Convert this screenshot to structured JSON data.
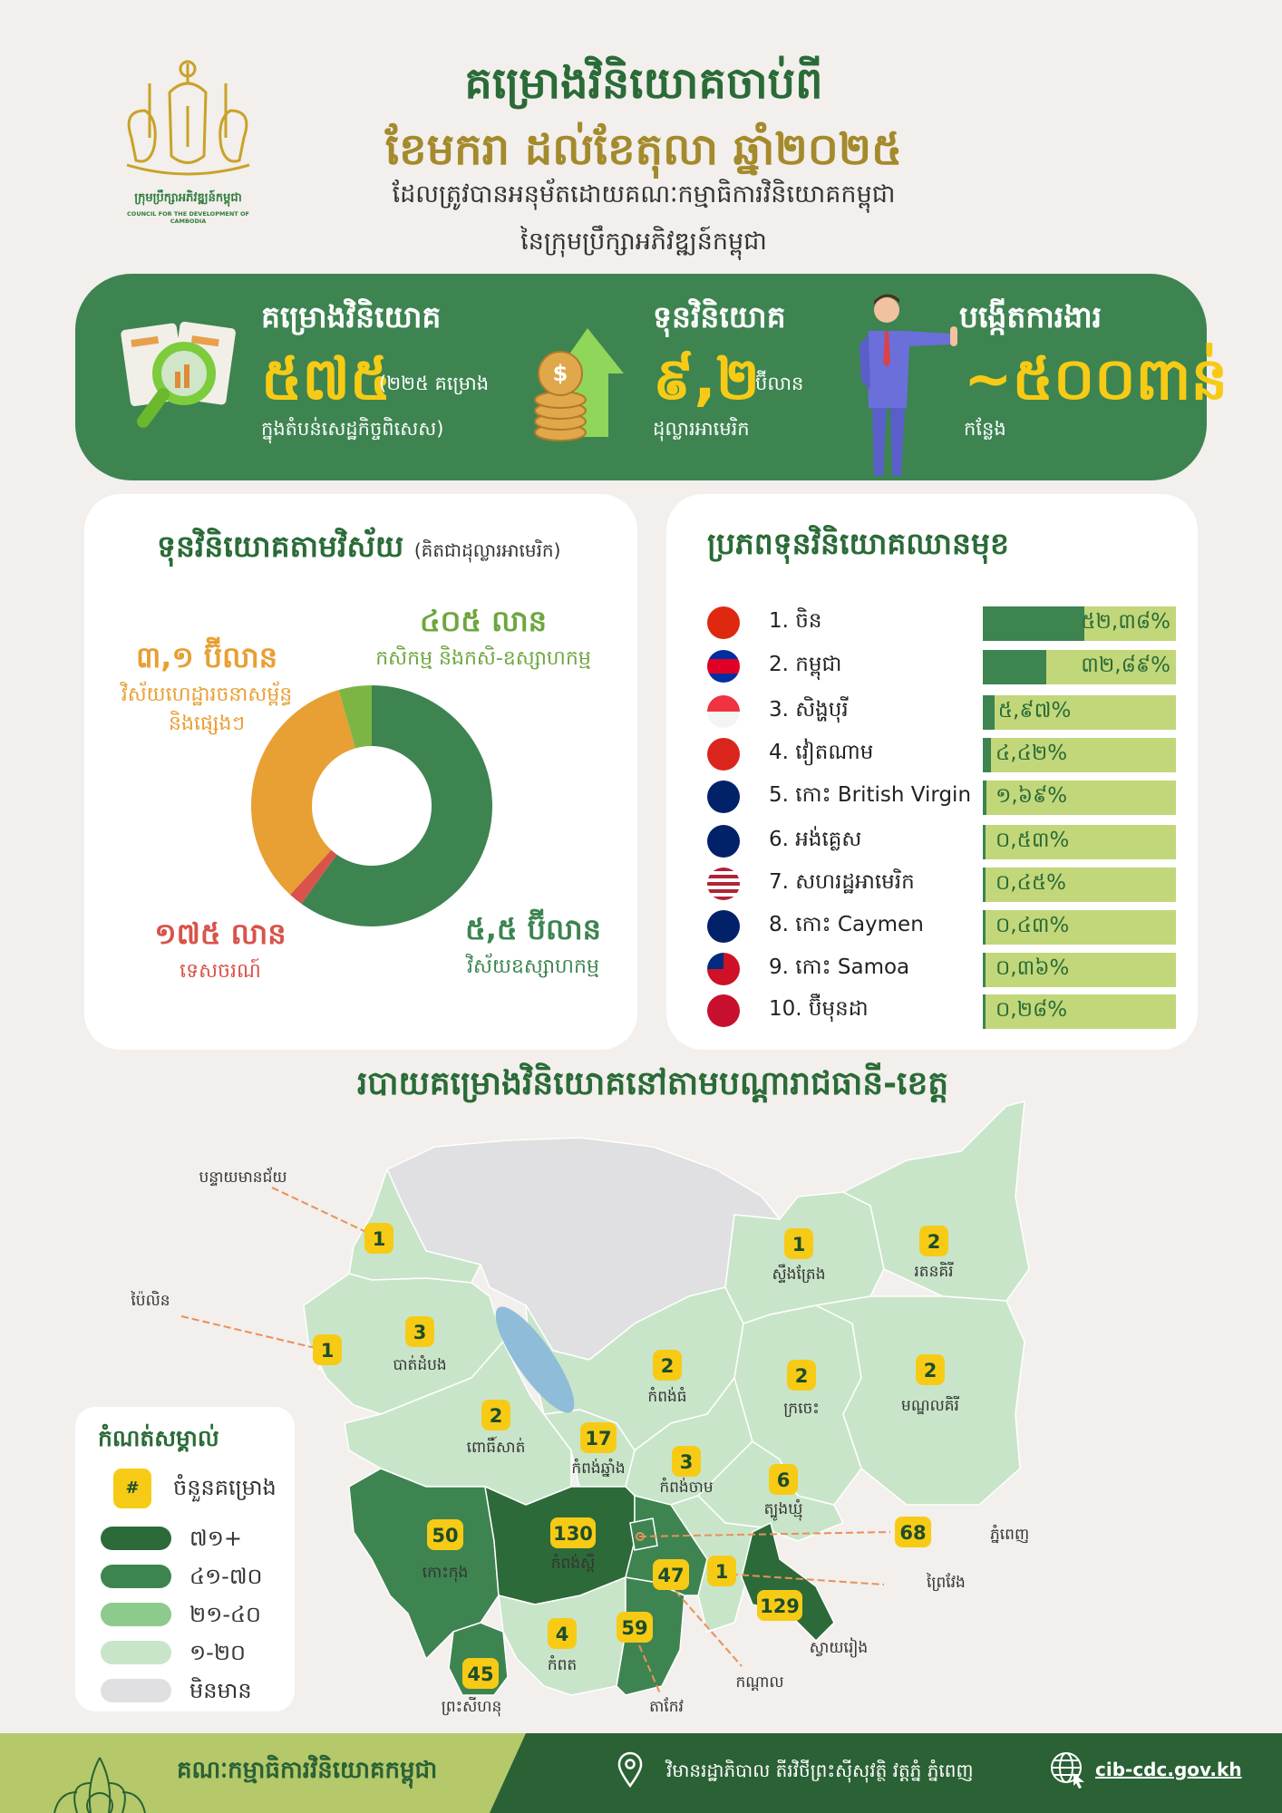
{
  "logo": {
    "kh": "ក្រុមប្រឹក្សាអភិវឌ្ឍន៍កម្ពុជា",
    "en": "COUNCIL FOR THE DEVELOPMENT OF CAMBODIA"
  },
  "header": {
    "title_line1": "គម្រោងវិនិយោគចាប់ពី",
    "title_line2": "ខែមករា ដល់ខែតុលា ឆ្នាំ២០២៥",
    "subtitle_line1": "ដែលត្រូវបានអនុម័តដោយគណៈកម្មាធិការវិនិយោគកម្ពុជា",
    "subtitle_line2": "នៃក្រុមប្រឹក្សាអភិវឌ្ឍន៍កម្ពុជា"
  },
  "stats": [
    {
      "icon": "document-magnifier-icon",
      "label": "គម្រោងវិនិយោគ",
      "value": "៥៧៥",
      "unit": "(២២៥ គម្រោង",
      "note": "ក្នុងតំបន់សេដ្ឋកិច្ចពិសេស)"
    },
    {
      "icon": "coins-arrow-up-icon",
      "label": "ទុនវិនិយោគ",
      "value": "៩,២",
      "unit": "ប៊ីលាន",
      "note": "ដុល្លារអាមេរិក"
    },
    {
      "icon": "businessman-icon",
      "label": "បង្កើតការងារ",
      "value": "~៥០០ពាន់",
      "unit": "",
      "note": "កន្លែង"
    }
  ],
  "colors": {
    "primary": "#3d8451",
    "dark": "#2a6b37",
    "accent": "#f7cb15",
    "gold": "#a48a2c"
  },
  "sector_chart": {
    "title": "ទុនវិនិយោគតាមវិស័យ",
    "note": "(គិតជាដុល្លារអាមេរិក)",
    "chart_data": {
      "type": "pie",
      "donut": true,
      "unit": "USD",
      "slices": [
        {
          "name": "វិស័យឧស្សាហកម្ម",
          "label": "៥,៥ ប៊ីលាន",
          "value": 5500000000,
          "color": "#3d8451",
          "icon": "factory-icon"
        },
        {
          "name": "ទេសចរណ៍",
          "label": "១៧៥ លាន",
          "value": 175000000,
          "color": "#d9534a",
          "icon": "globe-luggage-icon"
        },
        {
          "name": "វិស័យហេដ្ឋារចនាសម្ព័ន្ធ និងផ្សេងៗ",
          "label": "៣,១ ប៊ីលាន",
          "value": 3100000000,
          "color": "#e89f33",
          "icon": "city-gear-icon"
        },
        {
          "name": "កសិកម្ម និងកសិ-ឧស្សាហកម្ម",
          "label": "៤០៥ លាន",
          "value": 405000000,
          "color": "#7db544",
          "icon": "plant-icon"
        }
      ]
    }
  },
  "top_investors": {
    "title": "ប្រភពទុនវិនិយោគឈានមុខ",
    "chart_data": {
      "type": "bar",
      "unit": "%",
      "rows": [
        {
          "rank": "1.",
          "name": "ចិន",
          "value": 52.38,
          "label": "៥២,៣៨%",
          "flag": "china-flag-icon"
        },
        {
          "rank": "2.",
          "name": "កម្ពុជា",
          "value": 32.89,
          "label": "៣២,៨៩%",
          "flag": "cambodia-flag-icon"
        },
        {
          "rank": "3.",
          "name": "សិង្ហបុរី",
          "value": 5.97,
          "label": "៥,៩៧%",
          "flag": "singapore-flag-icon"
        },
        {
          "rank": "4.",
          "name": "វៀតណាម",
          "value": 4.42,
          "label": "៤,៤២%",
          "flag": "vietnam-flag-icon"
        },
        {
          "rank": "5.",
          "name": "កោះ British Virgin",
          "value": 1.69,
          "label": "១,៦៩%",
          "flag": "bvi-flag-icon"
        },
        {
          "rank": "6.",
          "name": "អង់គ្លេស",
          "value": 0.53,
          "label": "០,៥៣%",
          "flag": "uk-flag-icon"
        },
        {
          "rank": "7.",
          "name": "សហរដ្ឋអាមេរិក",
          "value": 0.45,
          "label": "០,៤៥%",
          "flag": "usa-flag-icon"
        },
        {
          "rank": "8.",
          "name": "កោះ Caymen",
          "value": 0.43,
          "label": "០,៤៣%",
          "flag": "cayman-flag-icon"
        },
        {
          "rank": "9.",
          "name": "កោះ Samoa",
          "value": 0.36,
          "label": "០,៣៦%",
          "flag": "samoa-flag-icon"
        },
        {
          "rank": "10.",
          "name": "ប៊ឺមុនដា",
          "value": 0.28,
          "label": "០,២៨%",
          "flag": "bermuda-flag-icon"
        }
      ]
    }
  },
  "map": {
    "title": "របាយគម្រោងវិនិយោគនៅតាមបណ្ដារាជធានី-ខេត្ត",
    "legend": {
      "title": "កំណត់សម្គាល់",
      "badge_symbol": "#",
      "badge_label": "ចំនួនគម្រោង",
      "bands": [
        {
          "label": "៧១+",
          "color": "#2d6a3a"
        },
        {
          "label": "៤១-៧០",
          "color": "#3d8451"
        },
        {
          "label": "២១-៤០",
          "color": "#8ccb8c"
        },
        {
          "label": "១-២០",
          "color": "#c9e5c9"
        },
        {
          "label": "មិនមាន",
          "color": "#e0dfe1"
        }
      ]
    },
    "no_data_color": "#e0dfe1",
    "lake_color": "#8fbcd9",
    "provinces": [
      {
        "id": "bmc",
        "name": "បន្ទាយមានជ័យ",
        "count": 1
      },
      {
        "id": "pailin",
        "name": "ប៉ៃលិន",
        "count": 1
      },
      {
        "id": "btb",
        "name": "បាត់ដំបង",
        "count": 3
      },
      {
        "id": "pursat",
        "name": "ពោធិ៍សាត់",
        "count": 2
      },
      {
        "id": "kchhnang",
        "name": "កំពង់ឆ្នាំង",
        "count": 17
      },
      {
        "id": "kthom",
        "name": "កំពង់ធំ",
        "count": 2
      },
      {
        "id": "kcham",
        "name": "កំពង់ចាម",
        "count": 3
      },
      {
        "id": "tkhmum",
        "name": "ត្បូងឃ្មុំ",
        "count": 6
      },
      {
        "id": "stung",
        "name": "ស្ទឹងត្រែង",
        "count": 1
      },
      {
        "id": "ratana",
        "name": "រតនគិរី",
        "count": 2
      },
      {
        "id": "kratie",
        "name": "ក្រចេះ",
        "count": 2
      },
      {
        "id": "mondul",
        "name": "មណ្ឌលគិរី",
        "count": 2
      },
      {
        "id": "kkong",
        "name": "កោះកុង",
        "count": 50
      },
      {
        "id": "kspeu",
        "name": "កំពង់ស្ពឺ",
        "count": 130
      },
      {
        "id": "kampot",
        "name": "កំពត",
        "count": 4
      },
      {
        "id": "sihanouk",
        "name": "ព្រះសីហនុ",
        "count": 45
      },
      {
        "id": "takeo",
        "name": "តាកែវ",
        "count": 59
      },
      {
        "id": "kandal",
        "name": "កណ្ដាល",
        "count": 47
      },
      {
        "id": "pp",
        "name": "ភ្នំពេញ",
        "count": 68
      },
      {
        "id": "preyveng",
        "name": "ព្រៃវែង",
        "count": 1
      },
      {
        "id": "svay",
        "name": "ស្វាយរៀង",
        "count": 129
      }
    ]
  },
  "footer": {
    "org": "គណៈកម្មាធិការវិនិយោគកម្ពុជា",
    "address": "វិមានរដ្ឋាភិបាល តីរវិថីព្រះស៊ីសុវត្ថិ វត្តភ្នំ ភ្នំពេញ",
    "website": "cib-cdc.gov.kh"
  }
}
